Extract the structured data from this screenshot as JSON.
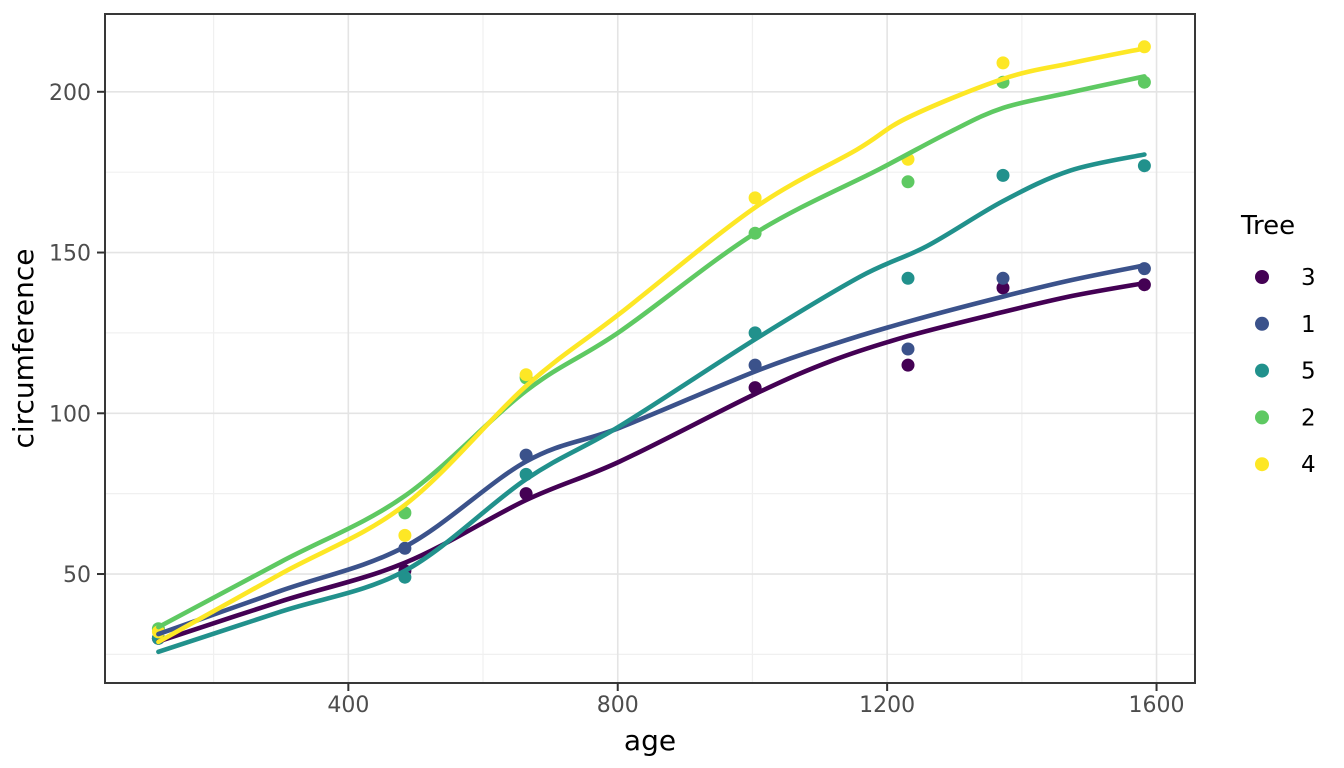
{
  "chart_data": {
    "type": "scatter",
    "smoother": "loess",
    "title": "",
    "xlabel": "age",
    "ylabel": "circumference",
    "x_ticks": [
      400,
      800,
      1200,
      1600
    ],
    "x_minor_gridlines": [
      200,
      600,
      1000,
      1400
    ],
    "y_ticks": [
      50,
      100,
      150,
      200
    ],
    "y_minor_gridlines": [
      25,
      75,
      125,
      175
    ],
    "x_domain": [
      38.7,
      1657.1
    ],
    "y_domain": [
      16.1,
      224.2
    ],
    "grid": true,
    "x": [
      118,
      484,
      664,
      1004,
      1231,
      1372,
      1582
    ],
    "series": [
      {
        "name": "3",
        "color": "#440154",
        "values": [
          30,
          51,
          75,
          108,
          115,
          139,
          140
        ],
        "smooth": [
          [
            118,
            29
          ],
          [
            300,
            41.5
          ],
          [
            484,
            53.5
          ],
          [
            664,
            73
          ],
          [
            803,
            85
          ],
          [
            1004,
            106
          ],
          [
            1120,
            116.5
          ],
          [
            1231,
            124
          ],
          [
            1372,
            131.5
          ],
          [
            1475,
            136.5
          ],
          [
            1582,
            140.5
          ]
        ]
      },
      {
        "name": "1",
        "color": "#3B528B",
        "values": [
          30,
          58,
          87,
          115,
          120,
          142,
          145
        ],
        "smooth": [
          [
            118,
            31.3
          ],
          [
            300,
            44.8
          ],
          [
            484,
            58.5
          ],
          [
            664,
            85
          ],
          [
            803,
            95.5
          ],
          [
            1004,
            113
          ],
          [
            1120,
            121.5
          ],
          [
            1231,
            128.5
          ],
          [
            1372,
            136.3
          ],
          [
            1475,
            141.5
          ],
          [
            1582,
            146
          ]
        ]
      },
      {
        "name": "5",
        "color": "#21918C",
        "values": [
          30,
          49,
          81,
          125,
          142,
          174,
          177
        ],
        "smooth": [
          [
            118,
            25.8
          ],
          [
            300,
            38.3
          ],
          [
            484,
            51
          ],
          [
            664,
            79.5
          ],
          [
            803,
            96
          ],
          [
            1004,
            123
          ],
          [
            1160,
            142.5
          ],
          [
            1259,
            152
          ],
          [
            1372,
            166
          ],
          [
            1472,
            175.5
          ],
          [
            1582,
            180.5
          ]
        ]
      },
      {
        "name": "2",
        "color": "#5EC962",
        "values": [
          33,
          69,
          111,
          156,
          172,
          203,
          203
        ],
        "smooth": [
          [
            118,
            33.5
          ],
          [
            300,
            53.8
          ],
          [
            484,
            74.3
          ],
          [
            664,
            107
          ],
          [
            803,
            125.4
          ],
          [
            1004,
            156
          ],
          [
            1189,
            176
          ],
          [
            1293,
            187.5
          ],
          [
            1372,
            195
          ],
          [
            1472,
            199.8
          ],
          [
            1582,
            204.8
          ]
        ]
      },
      {
        "name": "4",
        "color": "#FDE725",
        "values": [
          32,
          62,
          112,
          167,
          179,
          209,
          214
        ],
        "smooth": [
          [
            118,
            28.9
          ],
          [
            300,
            50.1
          ],
          [
            484,
            71.5
          ],
          [
            664,
            108.5
          ],
          [
            803,
            131
          ],
          [
            1004,
            164
          ],
          [
            1155,
            182
          ],
          [
            1231,
            192
          ],
          [
            1372,
            204
          ],
          [
            1475,
            209
          ],
          [
            1582,
            213.5
          ]
        ]
      }
    ],
    "legend": {
      "title": "Tree",
      "position": "right",
      "entries": [
        "3",
        "1",
        "5",
        "2",
        "4"
      ]
    }
  },
  "style": {
    "background": "#ffffff",
    "panel_background": "#ffffff",
    "panel_border": "#383838",
    "grid_major": "#e4e4e4",
    "grid_minor": "#f0f0f0",
    "tick_mark": "#333333",
    "tick_text": "#4d4d4d",
    "title_text": "#000000"
  }
}
